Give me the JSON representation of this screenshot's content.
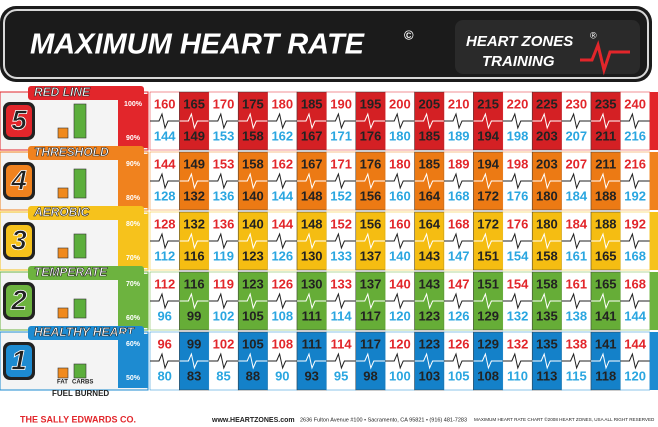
{
  "header": {
    "title": "MAXIMUM HEART RATE",
    "title_mark": "©",
    "brand_line1": "HEART ZONES",
    "brand_mark": "®",
    "brand_line2": "TRAINING"
  },
  "zones": [
    {
      "number": "5",
      "name": "RED LINE",
      "pct_top": "100%",
      "pct_bottom": "90%",
      "color": "#e2262b",
      "dark": "#d42024",
      "top": [
        160,
        165,
        170,
        175,
        180,
        185,
        190,
        195,
        200,
        205,
        210,
        215,
        220,
        225,
        230,
        235,
        240
      ],
      "bottom": [
        144,
        149,
        153,
        158,
        162,
        167,
        171,
        176,
        180,
        185,
        189,
        194,
        198,
        203,
        207,
        211,
        216
      ]
    },
    {
      "number": "4",
      "name": "THRESHOLD",
      "pct_top": "90%",
      "pct_bottom": "80%",
      "color": "#f0821e",
      "dark": "#ec7a14",
      "top": [
        144,
        149,
        153,
        158,
        162,
        167,
        171,
        176,
        180,
        185,
        189,
        194,
        198,
        203,
        207,
        211,
        216
      ],
      "bottom": [
        128,
        132,
        136,
        140,
        144,
        148,
        152,
        156,
        160,
        164,
        168,
        172,
        176,
        180,
        184,
        188,
        192
      ]
    },
    {
      "number": "3",
      "name": "AEROBIC",
      "pct_top": "80%",
      "pct_bottom": "70%",
      "color": "#f6c21c",
      "dark": "#f5bd12",
      "top": [
        128,
        132,
        136,
        140,
        144,
        148,
        152,
        156,
        160,
        164,
        168,
        172,
        176,
        180,
        184,
        188,
        192
      ],
      "bottom": [
        112,
        116,
        119,
        123,
        126,
        130,
        133,
        137,
        140,
        143,
        147,
        151,
        154,
        158,
        161,
        165,
        168
      ]
    },
    {
      "number": "2",
      "name": "TEMPERATE",
      "pct_top": "70%",
      "pct_bottom": "60%",
      "color": "#6db33f",
      "dark": "#66ad37",
      "top": [
        112,
        116,
        119,
        123,
        126,
        130,
        133,
        137,
        140,
        143,
        147,
        151,
        154,
        158,
        161,
        165,
        168
      ],
      "bottom": [
        96,
        99,
        102,
        105,
        108,
        111,
        114,
        117,
        120,
        123,
        126,
        129,
        132,
        135,
        138,
        141,
        144
      ]
    },
    {
      "number": "1",
      "name": "HEALTHY HEART",
      "pct_top": "60%",
      "pct_bottom": "50%",
      "color": "#1d8bd1",
      "dark": "#1481c9",
      "top": [
        96,
        99,
        102,
        105,
        108,
        111,
        114,
        117,
        120,
        123,
        126,
        129,
        132,
        135,
        138,
        141,
        144
      ],
      "bottom": [
        80,
        83,
        85,
        88,
        90,
        93,
        95,
        98,
        100,
        103,
        105,
        108,
        110,
        113,
        115,
        118,
        120
      ]
    }
  ],
  "fuel": {
    "fat": "FAT",
    "carbs": "CARBS",
    "label": "FUEL BURNED"
  },
  "footer": {
    "company": "THE SALLY EDWARDS CO.",
    "web": "www.HEARTZONES.com",
    "address": "2636 Fulton Avenue #100 • Sacramento, CA 95821 • (916) 481-7283",
    "copyright": "MAXIMUM HEART RATE CHART ©2008 HEART ZONES, USA ALL RIGHT RESERVED"
  }
}
